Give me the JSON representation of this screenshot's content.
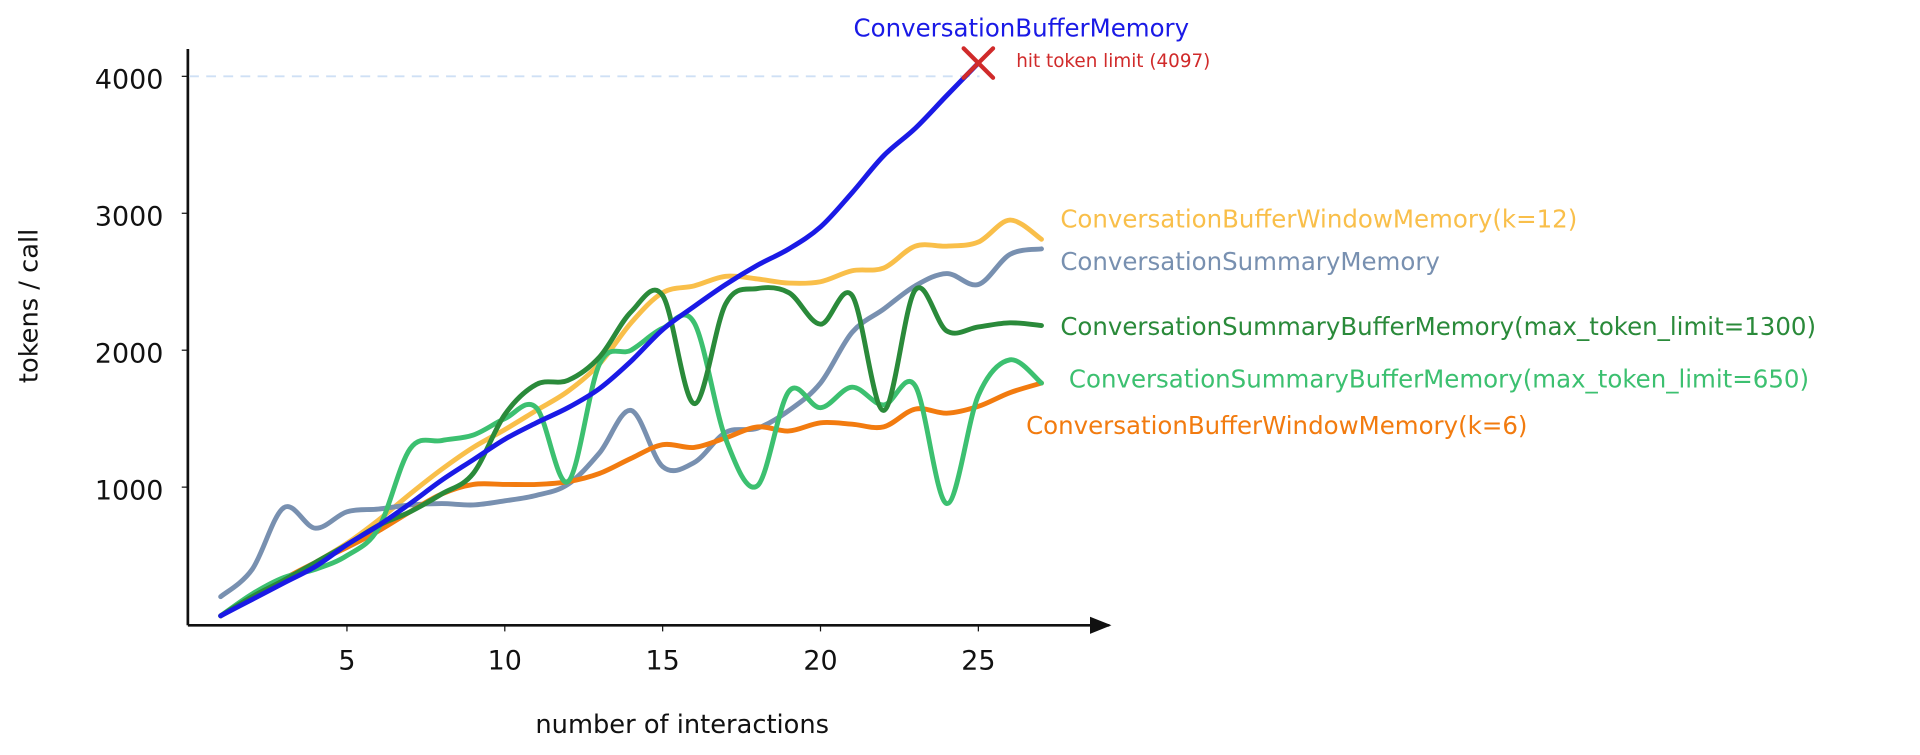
{
  "chart_data": {
    "type": "line",
    "xlabel": "number of interactions",
    "ylabel": "tokens / call",
    "x": [
      1,
      2,
      3,
      4,
      5,
      6,
      7,
      8,
      9,
      10,
      11,
      12,
      13,
      14,
      15,
      16,
      17,
      18,
      19,
      20,
      21,
      22,
      23,
      24,
      25,
      26,
      27
    ],
    "xlim": [
      0,
      29
    ],
    "xticks": [
      5,
      10,
      15,
      20,
      25
    ],
    "ylim": [
      0,
      4200
    ],
    "yticks": [
      1000,
      2000,
      3000,
      4000
    ],
    "reference_line": 4000,
    "series": [
      {
        "name": "ConversationBufferMemory",
        "color": "#1a1ae6",
        "values": [
          60,
          180,
          300,
          420,
          580,
          720,
          880,
          1050,
          1200,
          1350,
          1470,
          1580,
          1720,
          1920,
          2150,
          2320,
          2480,
          2620,
          2740,
          2900,
          3150,
          3420,
          3620,
          3860,
          4097,
          null,
          null
        ]
      },
      {
        "name": "ConversationBufferWindowMemory(k=12)",
        "color": "#f9bf4a",
        "values": [
          60,
          190,
          320,
          450,
          590,
          760,
          950,
          1130,
          1290,
          1420,
          1560,
          1700,
          1900,
          2200,
          2420,
          2470,
          2540,
          2520,
          2490,
          2500,
          2580,
          2600,
          2760,
          2760,
          2790,
          2950,
          2810
        ]
      },
      {
        "name": "ConversationSummaryMemory",
        "color": "#7890b0",
        "values": [
          200,
          400,
          850,
          700,
          820,
          840,
          870,
          880,
          870,
          900,
          940,
          1020,
          1250,
          1560,
          1150,
          1180,
          1400,
          1430,
          1560,
          1760,
          2130,
          2300,
          2470,
          2560,
          2480,
          2700,
          2740
        ]
      },
      {
        "name": "ConversationSummaryBufferMemory(max_token_limit=1300)",
        "color": "#2a8a3a",
        "values": [
          60,
          200,
          320,
          450,
          580,
          720,
          820,
          950,
          1100,
          1530,
          1750,
          1780,
          1950,
          2280,
          2400,
          1610,
          2340,
          2450,
          2420,
          2190,
          2400,
          1560,
          2440,
          2140,
          2170,
          2200,
          2180
        ]
      },
      {
        "name": "ConversationSummaryBufferMemory(max_token_limit=650)",
        "color": "#3cc070",
        "values": [
          60,
          220,
          340,
          400,
          500,
          700,
          1280,
          1340,
          1380,
          1500,
          1580,
          1040,
          1900,
          2000,
          2160,
          2200,
          1350,
          1010,
          1700,
          1580,
          1730,
          1600,
          1740,
          880,
          1670,
          1930,
          1760
        ]
      },
      {
        "name": "ConversationBufferWindowMemory(k=6)",
        "color": "#f27b0f",
        "values": [
          60,
          200,
          330,
          450,
          560,
          680,
          820,
          950,
          1020,
          1020,
          1020,
          1040,
          1100,
          1210,
          1310,
          1290,
          1360,
          1440,
          1410,
          1470,
          1460,
          1440,
          1570,
          1540,
          1590,
          1690,
          1760
        ]
      }
    ],
    "annotation": {
      "text": "hit token limit (4097)",
      "x": 25,
      "y": 4097,
      "color": "#d02a2a"
    }
  }
}
